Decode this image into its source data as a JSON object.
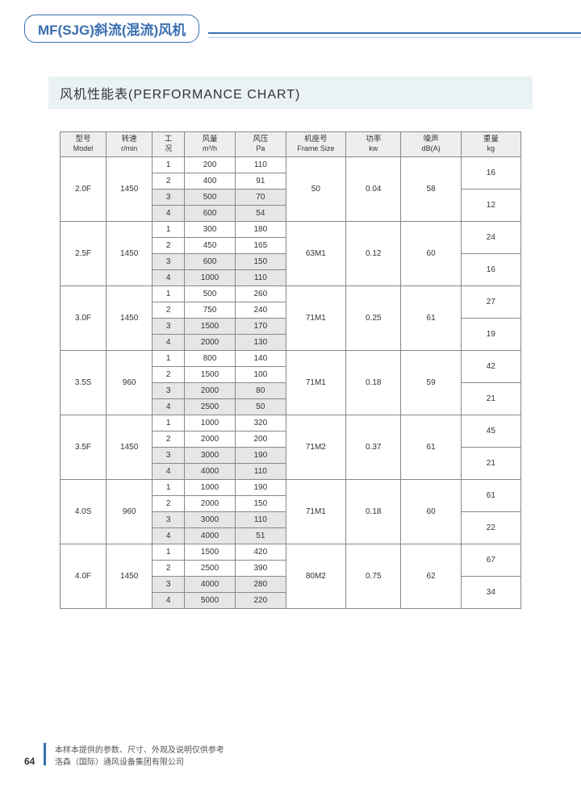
{
  "header": {
    "title": "MF(SJG)斜流(混流)风机"
  },
  "section": {
    "title": "风机性能表(PERFORMANCE CHART)"
  },
  "columns": [
    {
      "cn": "型号",
      "en": "Model"
    },
    {
      "cn": "转速",
      "en": "r/min"
    },
    {
      "cn": "工",
      "en": "况"
    },
    {
      "cn": "风量",
      "en": "m³/h"
    },
    {
      "cn": "风压",
      "en": "Pa"
    },
    {
      "cn": "机座号",
      "en": "Frame Size"
    },
    {
      "cn": "功率",
      "en": "kw"
    },
    {
      "cn": "噪声",
      "en": "dB(A)"
    },
    {
      "cn": "重量",
      "en": "kg"
    }
  ],
  "groups": [
    {
      "model": "2.0F",
      "speed": "1450",
      "frame": "50",
      "power": "0.04",
      "noise": "58",
      "weights": [
        "16",
        "12"
      ],
      "rows": [
        {
          "c": "1",
          "v": "200",
          "p": "110"
        },
        {
          "c": "2",
          "v": "400",
          "p": "91"
        },
        {
          "c": "3",
          "v": "500",
          "p": "70"
        },
        {
          "c": "4",
          "v": "600",
          "p": "54"
        }
      ]
    },
    {
      "model": "2.5F",
      "speed": "1450",
      "frame": "63M1",
      "power": "0.12",
      "noise": "60",
      "weights": [
        "24",
        "16"
      ],
      "rows": [
        {
          "c": "1",
          "v": "300",
          "p": "180"
        },
        {
          "c": "2",
          "v": "450",
          "p": "165"
        },
        {
          "c": "3",
          "v": "600",
          "p": "150"
        },
        {
          "c": "4",
          "v": "1000",
          "p": "110"
        }
      ]
    },
    {
      "model": "3.0F",
      "speed": "1450",
      "frame": "71M1",
      "power": "0.25",
      "noise": "61",
      "weights": [
        "27",
        "19"
      ],
      "rows": [
        {
          "c": "1",
          "v": "500",
          "p": "260"
        },
        {
          "c": "2",
          "v": "750",
          "p": "240"
        },
        {
          "c": "3",
          "v": "1500",
          "p": "170"
        },
        {
          "c": "4",
          "v": "2000",
          "p": "130"
        }
      ]
    },
    {
      "model": "3.5S",
      "speed": "960",
      "frame": "71M1",
      "power": "0.18",
      "noise": "59",
      "weights": [
        "42",
        "21"
      ],
      "rows": [
        {
          "c": "1",
          "v": "800",
          "p": "140"
        },
        {
          "c": "2",
          "v": "1500",
          "p": "100"
        },
        {
          "c": "3",
          "v": "2000",
          "p": "80"
        },
        {
          "c": "4",
          "v": "2500",
          "p": "50"
        }
      ]
    },
    {
      "model": "3.5F",
      "speed": "1450",
      "frame": "71M2",
      "power": "0.37",
      "noise": "61",
      "weights": [
        "45",
        "21"
      ],
      "rows": [
        {
          "c": "1",
          "v": "1000",
          "p": "320"
        },
        {
          "c": "2",
          "v": "2000",
          "p": "200"
        },
        {
          "c": "3",
          "v": "3000",
          "p": "190"
        },
        {
          "c": "4",
          "v": "4000",
          "p": "110"
        }
      ]
    },
    {
      "model": "4.0S",
      "speed": "960",
      "frame": "71M1",
      "power": "0.18",
      "noise": "60",
      "weights": [
        "61",
        "22"
      ],
      "rows": [
        {
          "c": "1",
          "v": "1000",
          "p": "190"
        },
        {
          "c": "2",
          "v": "2000",
          "p": "150"
        },
        {
          "c": "3",
          "v": "3000",
          "p": "110"
        },
        {
          "c": "4",
          "v": "4000",
          "p": "51"
        }
      ]
    },
    {
      "model": "4.0F",
      "speed": "1450",
      "frame": "80M2",
      "power": "0.75",
      "noise": "62",
      "weights": [
        "67",
        "34"
      ],
      "rows": [
        {
          "c": "1",
          "v": "1500",
          "p": "420"
        },
        {
          "c": "2",
          "v": "2500",
          "p": "390"
        },
        {
          "c": "3",
          "v": "4000",
          "p": "280"
        },
        {
          "c": "4",
          "v": "5000",
          "p": "220"
        }
      ]
    }
  ],
  "footer": {
    "disclaimer": "本样本提供的参数、尺寸、外观及说明仅供参考",
    "company": "洛森（国际）通风设备集团有限公司",
    "page_no": "64"
  }
}
